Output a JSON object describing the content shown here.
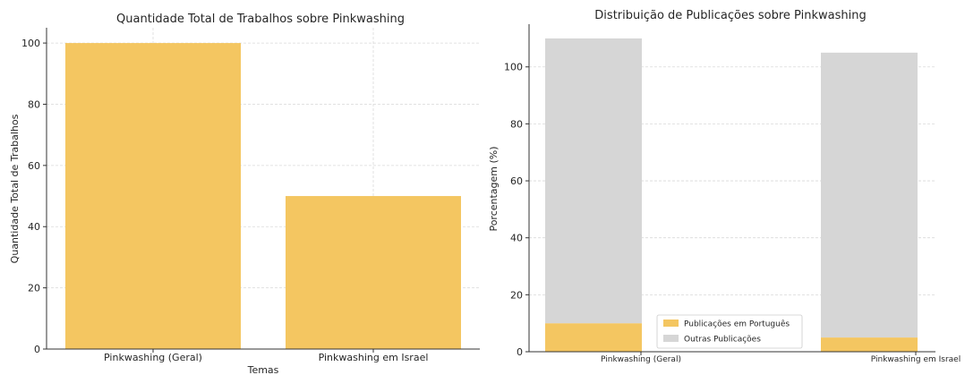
{
  "colors": {
    "portuguese": "#F4C661",
    "other": "#D6D6D6"
  },
  "chart_data": [
    {
      "type": "bar",
      "title": "Quantidade Total de Trabalhos sobre Pinkwashing",
      "xlabel": "Temas",
      "ylabel": "Quantidade Total de Trabalhos",
      "categories": [
        "Pinkwashing (Geral)",
        "Pinkwashing em Israel"
      ],
      "values": [
        100,
        50
      ],
      "ylim": [
        0,
        105
      ],
      "yticks": [
        0,
        20,
        40,
        60,
        80,
        100
      ],
      "grid": true
    },
    {
      "type": "bar",
      "stacked": true,
      "title": "Distribuição de Publicações sobre Pinkwashing",
      "xlabel": "",
      "ylabel": "Porcentagem (%)",
      "categories": [
        "Pinkwashing (Geral)",
        "Pinkwashing em Israel"
      ],
      "series": [
        {
          "name": "Publicações em Português",
          "values": [
            10,
            5
          ]
        },
        {
          "name": "Outras Publicações",
          "values": [
            100,
            100
          ]
        }
      ],
      "ylim": [
        0,
        115
      ],
      "yticks": [
        0,
        20,
        40,
        60,
        80,
        100
      ],
      "legend": "lower-center",
      "grid": true
    }
  ]
}
